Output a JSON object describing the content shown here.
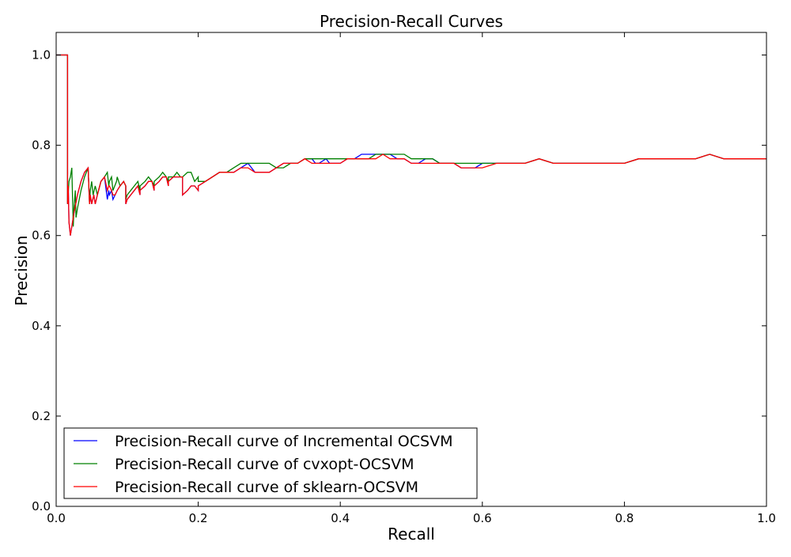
{
  "chart_data": {
    "type": "line",
    "title": "Precision-Recall Curves",
    "xlabel": "Recall",
    "ylabel": "Precision",
    "xlim": [
      0.0,
      1.0
    ],
    "ylim": [
      0.0,
      1.05
    ],
    "xticks": [
      "0.0",
      "0.2",
      "0.4",
      "0.6",
      "0.8",
      "1.0"
    ],
    "yticks": [
      "0.0",
      "0.2",
      "0.4",
      "0.6",
      "0.8",
      "1.0"
    ],
    "grid": false,
    "legend_position": "lower-left",
    "series": [
      {
        "name": "Precision-Recall curve of Incremental OCSVM",
        "color": "#0000ff",
        "x": [
          0,
          0.016,
          0.016,
          0.017,
          0.018,
          0.02,
          0.022,
          0.025,
          0.03,
          0.035,
          0.04,
          0.045,
          0.047,
          0.048,
          0.05,
          0.053,
          0.055,
          0.058,
          0.063,
          0.068,
          0.072,
          0.074,
          0.075,
          0.078,
          0.08,
          0.083,
          0.086,
          0.09,
          0.095,
          0.098,
          0.098,
          0.1,
          0.105,
          0.11,
          0.115,
          0.118,
          0.118,
          0.125,
          0.13,
          0.135,
          0.138,
          0.138,
          0.145,
          0.15,
          0.155,
          0.158,
          0.158,
          0.165,
          0.17,
          0.175,
          0.178,
          0.178,
          0.185,
          0.19,
          0.195,
          0.2,
          0.2,
          0.21,
          0.22,
          0.23,
          0.24,
          0.25,
          0.26,
          0.27,
          0.275,
          0.28,
          0.29,
          0.3,
          0.31,
          0.32,
          0.33,
          0.34,
          0.35,
          0.36,
          0.365,
          0.37,
          0.38,
          0.385,
          0.39,
          0.4,
          0.41,
          0.42,
          0.43,
          0.44,
          0.45,
          0.46,
          0.47,
          0.48,
          0.49,
          0.5,
          0.51,
          0.52,
          0.53,
          0.54,
          0.55,
          0.56,
          0.57,
          0.58,
          0.59,
          0.6,
          0.62,
          0.64,
          0.66,
          0.68,
          0.7,
          0.72,
          0.74,
          0.76,
          0.78,
          0.8,
          0.82,
          0.84,
          0.86,
          0.88,
          0.9,
          0.92,
          0.94,
          0.96,
          0.98,
          1.0
        ],
        "y": [
          1.0,
          1.0,
          0.67,
          0.71,
          0.63,
          0.6,
          0.62,
          0.65,
          0.69,
          0.72,
          0.74,
          0.75,
          0.67,
          0.69,
          0.67,
          0.69,
          0.67,
          0.69,
          0.72,
          0.73,
          0.68,
          0.7,
          0.69,
          0.7,
          0.68,
          0.69,
          0.7,
          0.71,
          0.72,
          0.71,
          0.67,
          0.68,
          0.69,
          0.7,
          0.71,
          0.69,
          0.7,
          0.71,
          0.72,
          0.72,
          0.7,
          0.71,
          0.72,
          0.73,
          0.73,
          0.71,
          0.72,
          0.73,
          0.73,
          0.73,
          0.73,
          0.69,
          0.7,
          0.71,
          0.71,
          0.7,
          0.71,
          0.72,
          0.73,
          0.74,
          0.74,
          0.74,
          0.75,
          0.76,
          0.75,
          0.74,
          0.74,
          0.74,
          0.75,
          0.76,
          0.76,
          0.76,
          0.77,
          0.77,
          0.76,
          0.76,
          0.77,
          0.76,
          0.76,
          0.76,
          0.77,
          0.77,
          0.78,
          0.78,
          0.78,
          0.78,
          0.78,
          0.77,
          0.77,
          0.76,
          0.76,
          0.77,
          0.77,
          0.76,
          0.76,
          0.76,
          0.75,
          0.75,
          0.75,
          0.76,
          0.76,
          0.76,
          0.76,
          0.77,
          0.76,
          0.76,
          0.76,
          0.76,
          0.76,
          0.76,
          0.77,
          0.77,
          0.77,
          0.77,
          0.77,
          0.78,
          0.77,
          0.77,
          0.77,
          0.77
        ]
      },
      {
        "name": "Precision-Recall curve of cvxopt-OCSVM",
        "color": "#008000",
        "x": [
          0,
          0.016,
          0.016,
          0.018,
          0.02,
          0.022,
          0.024,
          0.025,
          0.027,
          0.028,
          0.03,
          0.035,
          0.04,
          0.045,
          0.047,
          0.048,
          0.05,
          0.052,
          0.055,
          0.058,
          0.063,
          0.068,
          0.072,
          0.074,
          0.075,
          0.078,
          0.08,
          0.085,
          0.086,
          0.09,
          0.095,
          0.098,
          0.098,
          0.1,
          0.105,
          0.11,
          0.115,
          0.118,
          0.118,
          0.125,
          0.13,
          0.135,
          0.138,
          0.138,
          0.145,
          0.15,
          0.155,
          0.158,
          0.158,
          0.165,
          0.17,
          0.175,
          0.178,
          0.178,
          0.185,
          0.19,
          0.195,
          0.2,
          0.2,
          0.21,
          0.22,
          0.23,
          0.24,
          0.25,
          0.26,
          0.27,
          0.28,
          0.29,
          0.3,
          0.31,
          0.32,
          0.33,
          0.34,
          0.35,
          0.36,
          0.37,
          0.38,
          0.39,
          0.4,
          0.41,
          0.42,
          0.43,
          0.44,
          0.45,
          0.46,
          0.47,
          0.48,
          0.49,
          0.5,
          0.51,
          0.52,
          0.53,
          0.54,
          0.55,
          0.56,
          0.57,
          0.58,
          0.59,
          0.6,
          0.62,
          0.64,
          0.66,
          0.68,
          0.7,
          0.72,
          0.74,
          0.76,
          0.78,
          0.8,
          0.82,
          0.84,
          0.86,
          0.88,
          0.9,
          0.92,
          0.94,
          0.96,
          0.98,
          1.0
        ],
        "y": [
          1.0,
          1.0,
          0.67,
          0.72,
          0.73,
          0.75,
          0.62,
          0.66,
          0.7,
          0.64,
          0.66,
          0.7,
          0.73,
          0.75,
          0.67,
          0.7,
          0.72,
          0.69,
          0.71,
          0.69,
          0.72,
          0.73,
          0.74,
          0.71,
          0.72,
          0.73,
          0.7,
          0.72,
          0.73,
          0.71,
          0.72,
          0.71,
          0.68,
          0.69,
          0.7,
          0.71,
          0.72,
          0.7,
          0.71,
          0.72,
          0.73,
          0.72,
          0.71,
          0.72,
          0.73,
          0.74,
          0.73,
          0.72,
          0.73,
          0.73,
          0.74,
          0.73,
          0.73,
          0.73,
          0.74,
          0.74,
          0.72,
          0.73,
          0.72,
          0.72,
          0.73,
          0.74,
          0.74,
          0.75,
          0.76,
          0.76,
          0.76,
          0.76,
          0.76,
          0.75,
          0.75,
          0.76,
          0.76,
          0.77,
          0.77,
          0.77,
          0.77,
          0.77,
          0.77,
          0.77,
          0.77,
          0.77,
          0.77,
          0.78,
          0.78,
          0.78,
          0.78,
          0.78,
          0.77,
          0.77,
          0.77,
          0.77,
          0.76,
          0.76,
          0.76,
          0.76,
          0.76,
          0.76,
          0.76,
          0.76,
          0.76,
          0.76,
          0.77,
          0.76,
          0.76,
          0.76,
          0.76,
          0.76,
          0.76,
          0.77,
          0.77,
          0.77,
          0.77,
          0.77,
          0.78,
          0.77,
          0.77,
          0.77,
          0.77
        ]
      },
      {
        "name": "Precision-Recall curve of sklearn-OCSVM",
        "color": "#ff0000",
        "x": [
          0,
          0.016,
          0.016,
          0.017,
          0.018,
          0.02,
          0.022,
          0.025,
          0.03,
          0.035,
          0.04,
          0.045,
          0.047,
          0.048,
          0.05,
          0.053,
          0.055,
          0.058,
          0.063,
          0.068,
          0.072,
          0.074,
          0.075,
          0.078,
          0.08,
          0.083,
          0.086,
          0.09,
          0.095,
          0.098,
          0.098,
          0.1,
          0.105,
          0.11,
          0.115,
          0.118,
          0.118,
          0.125,
          0.13,
          0.135,
          0.138,
          0.138,
          0.145,
          0.15,
          0.155,
          0.158,
          0.158,
          0.165,
          0.17,
          0.175,
          0.178,
          0.178,
          0.185,
          0.19,
          0.195,
          0.2,
          0.2,
          0.21,
          0.22,
          0.23,
          0.24,
          0.25,
          0.26,
          0.27,
          0.28,
          0.29,
          0.3,
          0.31,
          0.32,
          0.33,
          0.34,
          0.35,
          0.36,
          0.37,
          0.38,
          0.39,
          0.4,
          0.41,
          0.42,
          0.43,
          0.44,
          0.45,
          0.46,
          0.47,
          0.48,
          0.49,
          0.5,
          0.51,
          0.52,
          0.53,
          0.54,
          0.55,
          0.56,
          0.57,
          0.58,
          0.59,
          0.6,
          0.62,
          0.64,
          0.66,
          0.68,
          0.7,
          0.72,
          0.74,
          0.76,
          0.78,
          0.8,
          0.82,
          0.84,
          0.86,
          0.88,
          0.9,
          0.92,
          0.94,
          0.96,
          0.98,
          1.0
        ],
        "y": [
          1.0,
          1.0,
          0.67,
          0.71,
          0.63,
          0.6,
          0.62,
          0.65,
          0.69,
          0.72,
          0.74,
          0.75,
          0.67,
          0.69,
          0.67,
          0.69,
          0.67,
          0.69,
          0.72,
          0.73,
          0.7,
          0.71,
          0.71,
          0.7,
          0.69,
          0.69,
          0.7,
          0.71,
          0.72,
          0.71,
          0.67,
          0.68,
          0.69,
          0.7,
          0.71,
          0.69,
          0.7,
          0.71,
          0.72,
          0.72,
          0.7,
          0.71,
          0.72,
          0.73,
          0.73,
          0.71,
          0.72,
          0.73,
          0.73,
          0.73,
          0.73,
          0.69,
          0.7,
          0.71,
          0.71,
          0.7,
          0.71,
          0.72,
          0.73,
          0.74,
          0.74,
          0.74,
          0.75,
          0.75,
          0.74,
          0.74,
          0.74,
          0.75,
          0.76,
          0.76,
          0.76,
          0.77,
          0.76,
          0.76,
          0.76,
          0.76,
          0.76,
          0.77,
          0.77,
          0.77,
          0.77,
          0.77,
          0.78,
          0.77,
          0.77,
          0.77,
          0.76,
          0.76,
          0.76,
          0.76,
          0.76,
          0.76,
          0.76,
          0.75,
          0.75,
          0.75,
          0.75,
          0.76,
          0.76,
          0.76,
          0.77,
          0.76,
          0.76,
          0.76,
          0.76,
          0.76,
          0.76,
          0.77,
          0.77,
          0.77,
          0.77,
          0.77,
          0.78,
          0.77,
          0.77,
          0.77,
          0.77
        ]
      }
    ]
  }
}
